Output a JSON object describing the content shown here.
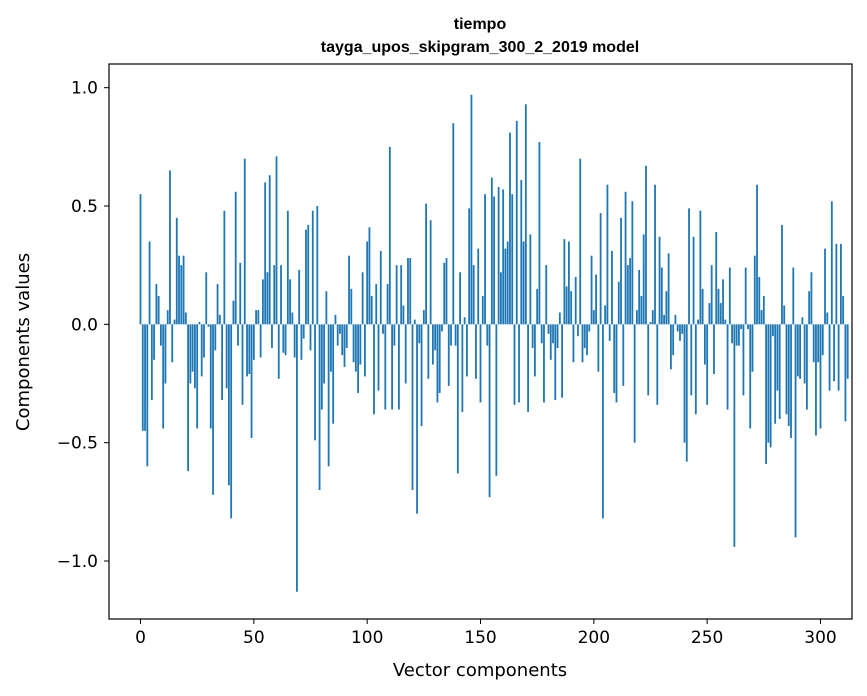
{
  "chart_data": {
    "type": "bar",
    "title": "tiempo",
    "subtitle": "tayga_upos_skipgram_300_2_2019 model",
    "xlabel": "Vector components",
    "ylabel": "Components values",
    "xlim": [
      -13.9,
      313.9
    ],
    "ylim": [
      -1.245,
      1.1
    ],
    "xticks": [
      0,
      50,
      100,
      150,
      200,
      250,
      300
    ],
    "xtick_labels": [
      "0",
      "50",
      "100",
      "150",
      "200",
      "250",
      "300"
    ],
    "yticks": [
      -1.0,
      -0.5,
      0.0,
      0.5,
      1.0
    ],
    "ytick_labels": [
      "−1.0",
      "−0.5",
      "0.0",
      "0.5",
      "1.0"
    ],
    "bar_color": "#1f77b4",
    "bar_width": 0.8,
    "values": [
      0.55,
      -0.45,
      -0.45,
      -0.6,
      0.35,
      -0.32,
      -0.15,
      0.17,
      0.12,
      -0.09,
      -0.44,
      -0.25,
      0.06,
      0.65,
      -0.16,
      0.02,
      0.45,
      0.29,
      0.25,
      0.29,
      0.05,
      -0.62,
      -0.25,
      -0.2,
      -0.27,
      -0.44,
      0.01,
      -0.22,
      -0.14,
      0.22,
      -0.01,
      -0.44,
      -0.72,
      -0.11,
      0.17,
      0.04,
      -0.32,
      0.48,
      -0.27,
      -0.68,
      -0.82,
      0.1,
      0.56,
      -0.09,
      0.26,
      -0.34,
      0.7,
      -0.22,
      -0.21,
      -0.48,
      -0.15,
      0.06,
      0.06,
      -0.14,
      0.19,
      0.6,
      0.22,
      0.63,
      -0.1,
      0.25,
      0.71,
      -0.23,
      0.25,
      -0.12,
      -0.13,
      0.48,
      0.19,
      0.05,
      -0.14,
      -1.13,
      0.23,
      -0.15,
      -0.06,
      0.4,
      0.42,
      -0.11,
      0.48,
      -0.49,
      0.5,
      -0.7,
      -0.36,
      -0.25,
      0.14,
      -0.6,
      -0.2,
      -0.42,
      0.04,
      -0.09,
      -0.04,
      -0.13,
      -0.18,
      -0.1,
      0.29,
      0.15,
      -0.16,
      -0.2,
      -0.29,
      -0.17,
      0.22,
      -0.22,
      0.35,
      0.41,
      0.12,
      -0.38,
      0.17,
      -0.28,
      0.31,
      -0.04,
      -0.36,
      0.17,
      0.75,
      -0.36,
      -0.09,
      0.25,
      -0.36,
      0.25,
      0.08,
      -0.25,
      0.28,
      0.28,
      -0.7,
      0.02,
      -0.8,
      -0.08,
      -0.43,
      0.06,
      0.51,
      -0.23,
      0.44,
      -0.17,
      -0.11,
      -0.33,
      -0.29,
      -0.03,
      0.26,
      0.28,
      -0.26,
      -0.09,
      0.85,
      -0.09,
      -0.63,
      0.22,
      -0.37,
      0.03,
      -0.22,
      0.49,
      0.97,
      0.25,
      -0.23,
      0.32,
      -0.33,
      0.12,
      0.55,
      -0.09,
      -0.73,
      0.62,
      0.54,
      -0.64,
      0.58,
      0.22,
      0.57,
      0.32,
      0.35,
      0.81,
      0.55,
      -0.34,
      0.86,
      -0.33,
      0.61,
      0.35,
      0.93,
      -0.37,
      0.38,
      -0.1,
      -0.22,
      0.15,
      0.77,
      -0.08,
      -0.33,
      0.25,
      -0.04,
      -0.15,
      -0.08,
      -0.32,
      -0.1,
      0.05,
      -0.31,
      0.36,
      0.16,
      0.35,
      0.14,
      -0.16,
      0.2,
      -0.05,
      0.7,
      -0.16,
      -0.1,
      -0.13,
      -0.03,
      0.29,
      0.06,
      0.21,
      -0.2,
      0.47,
      -0.82,
      0.08,
      0.59,
      -0.07,
      0.31,
      -0.29,
      -0.33,
      0.18,
      0.45,
      -0.26,
      0.56,
      0.25,
      0.28,
      0.52,
      -0.5,
      0.06,
      0.23,
      0.12,
      0.38,
      0.67,
      -0.3,
      0.01,
      0.06,
      0.59,
      -0.34,
      0.37,
      0.24,
      0.04,
      0.14,
      0.3,
      -0.19,
      -0.13,
      0.04,
      -0.03,
      -0.07,
      -0.04,
      -0.5,
      -0.58,
      0.49,
      -0.3,
      0.37,
      -0.38,
      0.02,
      0.48,
      0.15,
      -0.17,
      -0.34,
      0.09,
      0.25,
      -0.21,
      0.39,
      0.15,
      0.09,
      0.19,
      0.02,
      -0.36,
      0.24,
      -0.08,
      -0.94,
      -0.09,
      -0.09,
      -0.02,
      -0.3,
      0.24,
      -0.02,
      -0.44,
      -0.2,
      0.29,
      0.59,
      0.2,
      0.06,
      0.12,
      -0.59,
      -0.5,
      -0.52,
      -0.05,
      -0.42,
      -0.28,
      -0.4,
      0.42,
      0.08,
      -0.38,
      -0.43,
      -0.48,
      0.24,
      -0.9,
      -0.22,
      -0.23,
      0.03,
      -0.25,
      -0.36,
      0.14,
      0.22,
      -0.16,
      -0.47,
      -0.16,
      -0.44,
      -0.13,
      0.32,
      0.05,
      -0.28,
      0.52,
      -0.24,
      0.34,
      -0.28,
      0.34,
      0.12,
      -0.41,
      -0.23
    ]
  }
}
